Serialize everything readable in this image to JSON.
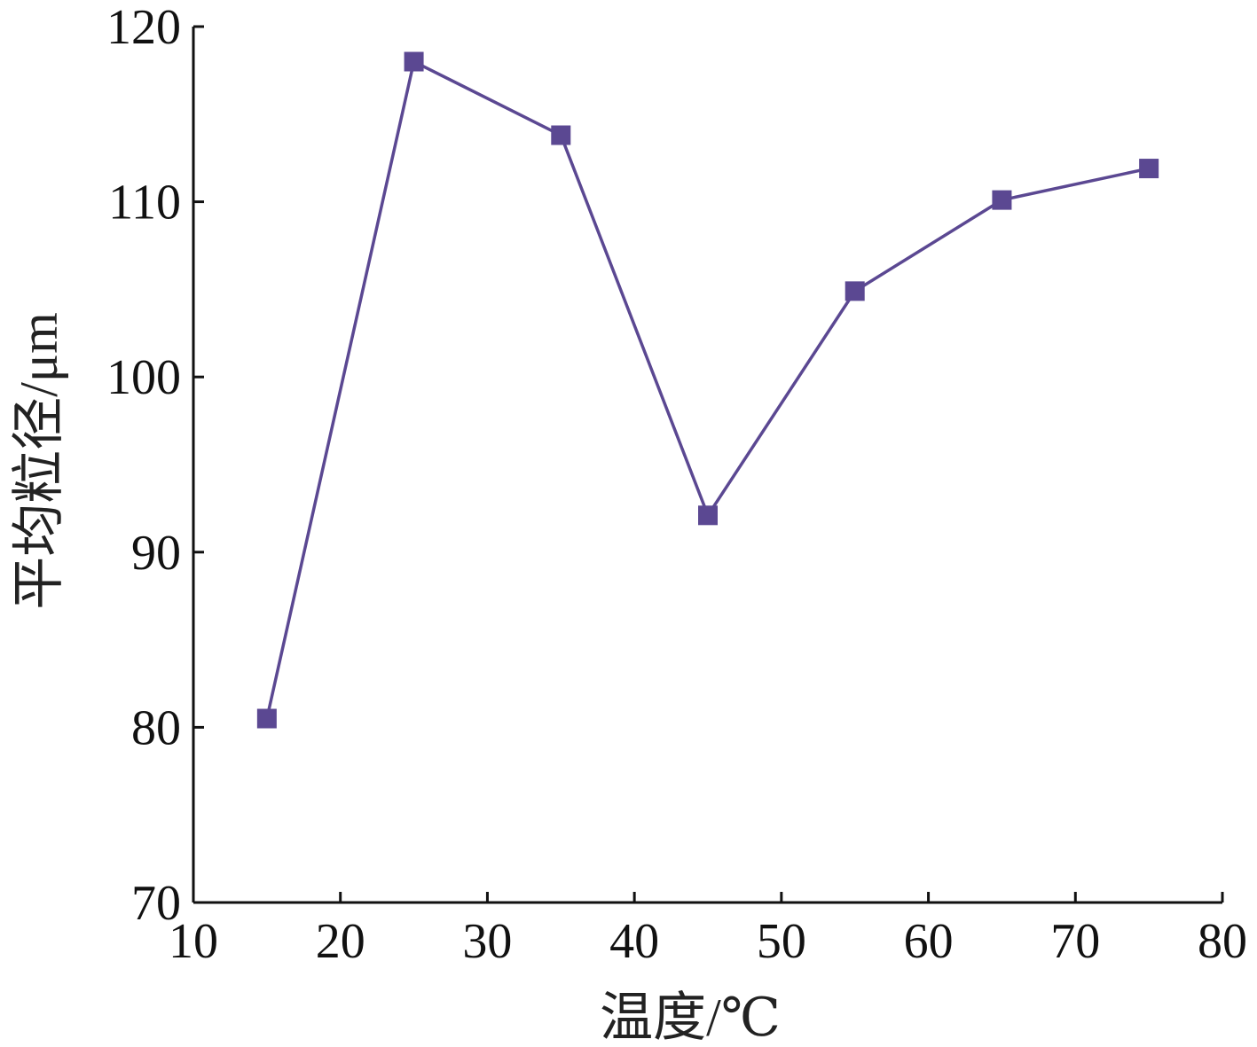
{
  "chart_data": {
    "type": "line",
    "title": "",
    "xlabel": "温度/℃",
    "ylabel": "平均粒径/μm",
    "xlim": [
      10,
      80
    ],
    "ylim": [
      70,
      120
    ],
    "xticks": [
      10,
      20,
      30,
      40,
      50,
      60,
      70,
      80
    ],
    "yticks": [
      70,
      80,
      90,
      100,
      110,
      120
    ],
    "xtick_labels": [
      "10",
      "20",
      "30",
      "40",
      "50",
      "60",
      "70",
      "80"
    ],
    "ytick_labels": [
      "70",
      "80",
      "90",
      "100",
      "110",
      "120"
    ],
    "grid": false,
    "legend": "none",
    "series": [
      {
        "x": [
          15,
          25,
          35,
          45,
          55,
          65,
          75
        ],
        "y": [
          80.5,
          118,
          113.8,
          92.1,
          104.9,
          110.1,
          111.9
        ],
        "color": "#5b4892",
        "marker": "square"
      }
    ]
  }
}
